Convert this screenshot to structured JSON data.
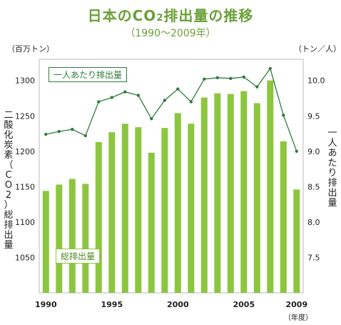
{
  "header": {
    "title_pre": "日本のCO",
    "title_sub": "2",
    "title_post": "排出量の推移",
    "subtitle": "（1990〜2009年）"
  },
  "chart_data": {
    "type": "bar+line",
    "categories": [
      "1990",
      "1991",
      "1992",
      "1993",
      "1994",
      "1995",
      "1996",
      "1997",
      "1998",
      "1999",
      "2000",
      "2001",
      "2002",
      "2003",
      "2004",
      "2005",
      "2006",
      "2007",
      "2008",
      "2009"
    ],
    "x_ticks": [
      "1990",
      "1995",
      "2000",
      "2005",
      "2009"
    ],
    "x_unit": "（年度）",
    "series": [
      {
        "name": "総排出量",
        "type": "bar",
        "axis": "left",
        "color": "#8cc63f",
        "values": [
          1144,
          1153,
          1161,
          1154,
          1213,
          1227,
          1239,
          1234,
          1198,
          1233,
          1254,
          1239,
          1276,
          1282,
          1281,
          1285,
          1268,
          1300,
          1214,
          1146
        ]
      },
      {
        "name": "一人あたり排出量",
        "type": "line",
        "axis": "right",
        "color": "#2e7d3a",
        "values": [
          9.24,
          9.28,
          9.31,
          9.22,
          9.7,
          9.76,
          9.84,
          9.79,
          9.46,
          9.72,
          9.88,
          9.7,
          10.02,
          10.04,
          10.03,
          10.05,
          9.91,
          10.17,
          9.51,
          9.0
        ]
      }
    ],
    "left_axis": {
      "unit": "（百万トン）",
      "label": "二酸化炭素（CO2）総排出量",
      "range": [
        1000,
        1330
      ],
      "ticks": [
        "1050",
        "1100",
        "1150",
        "1200",
        "1250",
        "1300"
      ]
    },
    "right_axis": {
      "unit": "（トン／人）",
      "label": "一人あたり排出量",
      "range": [
        7.0,
        10.3
      ],
      "ticks": [
        "7.5",
        "8.0",
        "8.5",
        "9.0",
        "9.5",
        "10.0"
      ]
    },
    "legend": {
      "line_label": "一人あたり排出量",
      "bar_label": "総排出量"
    }
  }
}
